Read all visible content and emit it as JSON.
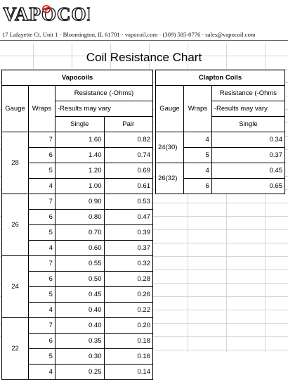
{
  "header": {
    "logo_text": "VAPOCOIL",
    "address": "17 Lafayette Ct. Unit 1 · Bloomington, IL  61701 · vapocoil.com · (309) 585-0776 · sales@vapocoil.com"
  },
  "title": "Coil Resistance Chart",
  "colors": {
    "logo_red": "#d62828",
    "grid": "#d6d6d6"
  },
  "vapocoils": {
    "title": "Vapocoils",
    "col_gauge": "Gauge",
    "col_wraps": "Wraps",
    "col_resistance": "Resistance (-Ohms)",
    "note": "-Results may vary",
    "col_single": "Single",
    "col_pair": "Pair",
    "groups": [
      {
        "gauge": "28",
        "rows": [
          {
            "wraps": "7",
            "single": "1.60",
            "pair": "0.82"
          },
          {
            "wraps": "6",
            "single": "1.40",
            "pair": "0.74"
          },
          {
            "wraps": "5",
            "single": "1.20",
            "pair": "0.69"
          },
          {
            "wraps": "4",
            "single": "1.00",
            "pair": "0.61"
          }
        ]
      },
      {
        "gauge": "26",
        "rows": [
          {
            "wraps": "7",
            "single": "0.90",
            "pair": "0.53"
          },
          {
            "wraps": "6",
            "single": "0.80",
            "pair": "0.47"
          },
          {
            "wraps": "5",
            "single": "0.70",
            "pair": "0.39"
          },
          {
            "wraps": "4",
            "single": "0.60",
            "pair": "0.37"
          }
        ]
      },
      {
        "gauge": "24",
        "rows": [
          {
            "wraps": "7",
            "single": "0.55",
            "pair": "0.32"
          },
          {
            "wraps": "6",
            "single": "0.50",
            "pair": "0.28"
          },
          {
            "wraps": "5",
            "single": "0.45",
            "pair": "0.26"
          },
          {
            "wraps": "4",
            "single": "0.40",
            "pair": "0.22"
          }
        ]
      },
      {
        "gauge": "22",
        "rows": [
          {
            "wraps": "7",
            "single": "0.40",
            "pair": "0.20"
          },
          {
            "wraps": "6",
            "single": "0.35",
            "pair": "0.18"
          },
          {
            "wraps": "5",
            "single": "0.30",
            "pair": "0.16"
          },
          {
            "wraps": "4",
            "single": "0.25",
            "pair": "0.14"
          }
        ]
      }
    ]
  },
  "clapton": {
    "title": "Clapton Coils",
    "col_gauge": "Gauge",
    "col_wraps": "Wraps",
    "col_resistance": "Resistance (-Ohms",
    "note": "-Results may vary",
    "col_single": "Single",
    "groups": [
      {
        "gauge": "24(30)",
        "rows": [
          {
            "wraps": "4",
            "single": "0.34"
          },
          {
            "wraps": "5",
            "single": "0.37"
          }
        ]
      },
      {
        "gauge": "26(32)",
        "rows": [
          {
            "wraps": "4",
            "single": "0.45"
          },
          {
            "wraps": "6",
            "single": "0.65"
          }
        ]
      }
    ]
  }
}
